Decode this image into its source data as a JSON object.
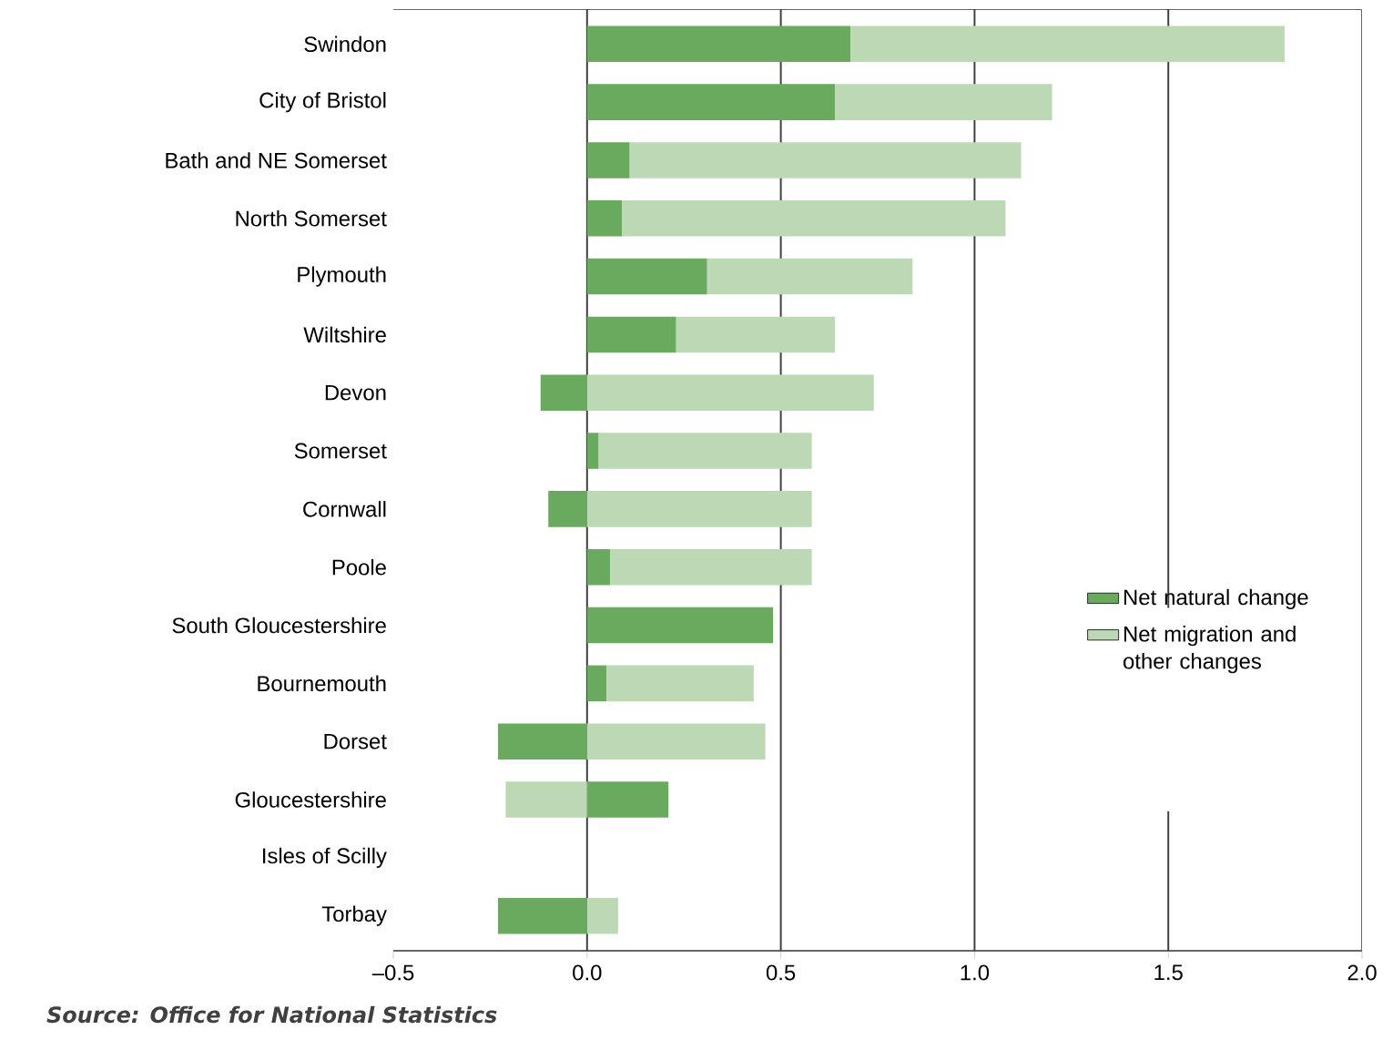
{
  "chart_data": {
    "type": "bar",
    "orientation": "horizontal",
    "stacked": true,
    "categories": [
      "Swindon",
      "City of Bristol",
      "Bath and NE Somerset",
      "North Somerset",
      "Plymouth",
      "Wiltshire",
      "Devon",
      "Somerset",
      "Cornwall",
      "Poole",
      "South Gloucestershire",
      "Bournemouth",
      "Dorset",
      "Gloucestershire",
      "Isles of Scilly",
      "Torbay"
    ],
    "series": [
      {
        "name": "Net natural change",
        "color": "#6aaa5e",
        "values": [
          0.68,
          0.64,
          0.11,
          0.09,
          0.31,
          0.23,
          -0.12,
          0.03,
          -0.1,
          0.06,
          0.48,
          0.05,
          -0.23,
          0.21,
          0,
          -0.23
        ]
      },
      {
        "name": "Net migration and other changes",
        "color": "#bcd8b4",
        "values": [
          1.12,
          0.56,
          1.01,
          0.99,
          0.53,
          0.41,
          0.74,
          0.55,
          0.58,
          0.52,
          0,
          0.38,
          0.46,
          -0.21,
          0,
          0.08
        ]
      }
    ],
    "xlim": [
      -0.5,
      2.0
    ],
    "xticks": [
      {
        "value": -0.5,
        "label": "–0.5"
      },
      {
        "value": 0,
        "label": "0.0"
      },
      {
        "value": 0.5,
        "label": "0.5"
      },
      {
        "value": 1,
        "label": "1.0"
      },
      {
        "value": 1.5,
        "label": "1.5"
      },
      {
        "value": 2,
        "label": "2.0"
      }
    ],
    "grid": "x",
    "legend": "right",
    "annotations": [
      "**Source: Office for National Statistics**"
    ]
  }
}
